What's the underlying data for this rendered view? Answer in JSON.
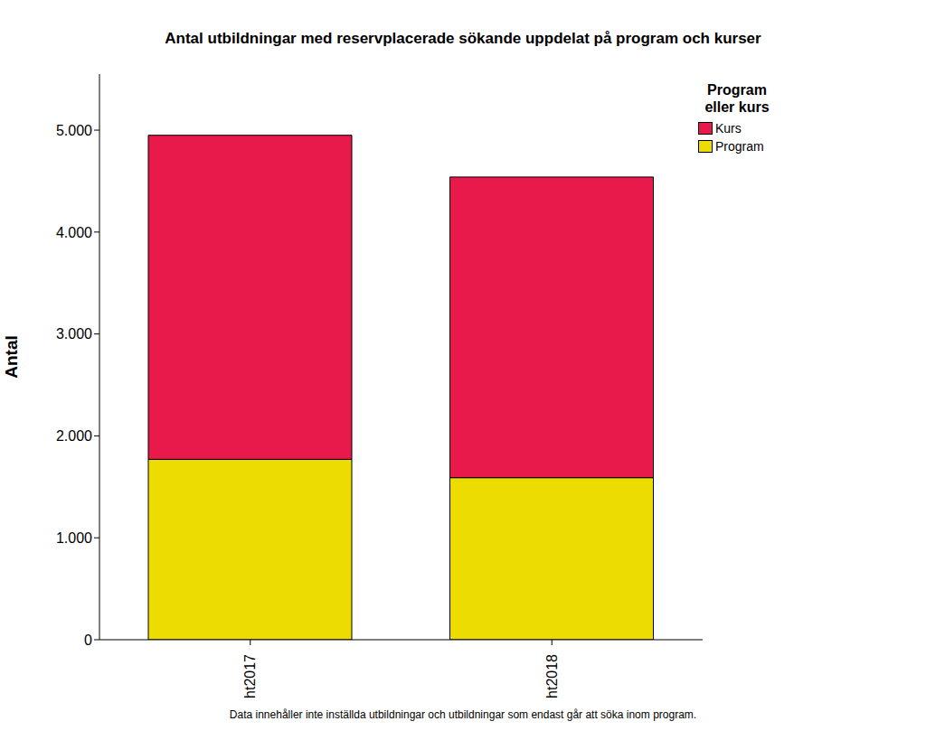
{
  "chart_data": {
    "type": "bar",
    "title": "Antal utbildningar med reservplacerade sökande uppdelat på program och kurser",
    "y_label": "Antal",
    "footnote": "Data innehåller inte inställda utbildningar och utbildningar som endast går att söka inom program.",
    "legend_title": "Program eller kurs",
    "legend": "right",
    "stacked": true,
    "grid": false,
    "categories": [
      "ht2017",
      "ht2018"
    ],
    "series": [
      {
        "name": "Program",
        "color": "#ecdc00",
        "values": [
          1770,
          1590
        ]
      },
      {
        "name": "Kurs",
        "color": "#e8194b",
        "values": [
          3180,
          2950
        ]
      }
    ],
    "ylim": [
      0,
      5550
    ],
    "yticks": [
      0,
      {
        "value": 1000,
        "label": "1.000"
      },
      {
        "value": 2000,
        "label": "2.000"
      },
      {
        "value": 3000,
        "label": "3.000"
      },
      {
        "value": 4000,
        "label": "4.000"
      },
      {
        "value": 5000,
        "label": "5.000"
      }
    ]
  }
}
